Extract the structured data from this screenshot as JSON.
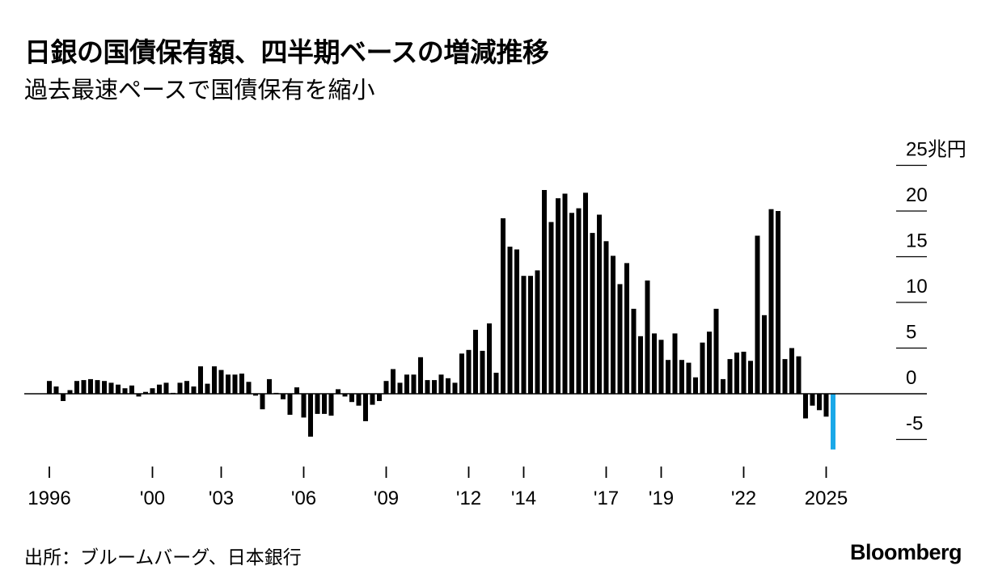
{
  "title": "日銀の国債保有額、四半期ベースの増減推移",
  "subtitle": "過去最速ペースで国債保有を縮小",
  "source": "出所：ブルームバーグ、日本銀行",
  "brand": "Bloomberg",
  "colors": {
    "bar": "#000000",
    "highlight": "#1aa8e8",
    "axis": "#000000"
  },
  "chart_data": {
    "type": "bar",
    "unit": "兆円",
    "ylim": [
      -5,
      25
    ],
    "yticks": [
      -5,
      0,
      5,
      10,
      15,
      20,
      25
    ],
    "ytick_labels": [
      "-5",
      "0",
      "5",
      "10",
      "15",
      "20",
      "25兆円"
    ],
    "x_tick_labels": [
      {
        "label": "1996",
        "index": 0
      },
      {
        "label": "'00",
        "index": 15
      },
      {
        "label": "'03",
        "index": 25
      },
      {
        "label": "'06",
        "index": 37
      },
      {
        "label": "'09",
        "index": 49
      },
      {
        "label": "'12",
        "index": 61
      },
      {
        "label": "'14",
        "index": 69
      },
      {
        "label": "'17",
        "index": 81
      },
      {
        "label": "'19",
        "index": 89
      },
      {
        "label": "'22",
        "index": 101
      },
      {
        "label": "2025",
        "index": 113
      }
    ],
    "values": [
      1.4,
      0.8,
      -0.8,
      0.4,
      1.4,
      1.5,
      1.6,
      1.5,
      1.4,
      1.2,
      1.0,
      0.6,
      0.9,
      -0.3,
      0.2,
      0.6,
      1.0,
      1.2,
      0.1,
      1.2,
      1.4,
      0.8,
      3.0,
      1.1,
      3.0,
      2.6,
      2.1,
      2.1,
      2.2,
      1.3,
      -0.2,
      -1.7,
      1.6,
      0.1,
      -0.6,
      -2.3,
      0.7,
      -2.6,
      -4.7,
      -2.2,
      -2.2,
      -2.4,
      0.5,
      -0.3,
      -0.9,
      -1.3,
      -3.0,
      -1.2,
      -0.8,
      1.4,
      2.7,
      1.2,
      2.1,
      2.1,
      4.0,
      1.5,
      1.5,
      2.1,
      1.7,
      1.2,
      4.4,
      4.8,
      7.0,
      4.7,
      7.7,
      2.3,
      19.2,
      16.1,
      15.8,
      12.9,
      12.9,
      13.5,
      22.3,
      18.8,
      21.4,
      21.9,
      19.8,
      20.3,
      22.0,
      17.6,
      19.6,
      16.7,
      15.1,
      12.0,
      14.3,
      9.3,
      6.3,
      12.4,
      6.6,
      5.9,
      3.7,
      6.6,
      3.7,
      3.4,
      1.8,
      5.6,
      6.8,
      9.3,
      1.6,
      3.8,
      4.5,
      4.6,
      3.6,
      17.3,
      8.6,
      20.2,
      20.0,
      3.8,
      5.0,
      4.1,
      -2.7,
      -1.3,
      -1.8,
      -2.5,
      -6.1
    ],
    "highlight_index": 114
  }
}
